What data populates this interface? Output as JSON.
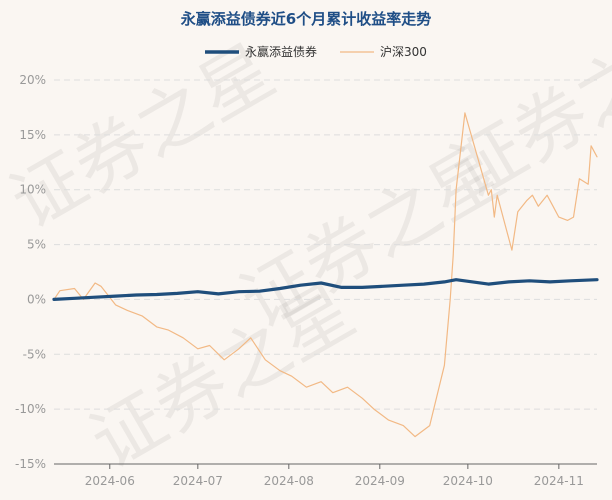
{
  "chart_data": {
    "type": "line",
    "title": "永赢添益债券近6个月累计收益率走势",
    "legend_position": "top-center",
    "grid": true,
    "ylim": [
      -15,
      20
    ],
    "yticks": [
      "20%",
      "15%",
      "10%",
      "5%",
      "0%",
      "-5%",
      "-10%",
      "-15%"
    ],
    "xticks": [
      "2024-06",
      "2024-07",
      "2024-08",
      "2024-09",
      "2024-10",
      "2024-11"
    ],
    "x_range": [
      "2024-05-13",
      "2024-11-14"
    ],
    "colors": {
      "title": "#1f4e86",
      "fund": "#1f4e7c",
      "index": "#f2b985",
      "grid": "#dddddd"
    },
    "watermark": "证券之星",
    "series": [
      {
        "name": "永赢添益债券",
        "x": [
          "2024-05-13",
          "2024-05-20",
          "2024-05-27",
          "2024-06-03",
          "2024-06-10",
          "2024-06-17",
          "2024-06-24",
          "2024-07-01",
          "2024-07-08",
          "2024-07-15",
          "2024-07-22",
          "2024-07-29",
          "2024-08-05",
          "2024-08-12",
          "2024-08-19",
          "2024-08-26",
          "2024-09-02",
          "2024-09-09",
          "2024-09-16",
          "2024-09-23",
          "2024-09-27",
          "2024-10-08",
          "2024-10-15",
          "2024-10-22",
          "2024-10-29",
          "2024-11-05",
          "2024-11-14"
        ],
        "values": [
          0.0,
          0.1,
          0.2,
          0.3,
          0.4,
          0.45,
          0.55,
          0.7,
          0.5,
          0.7,
          0.75,
          1.0,
          1.3,
          1.5,
          1.1,
          1.1,
          1.2,
          1.3,
          1.4,
          1.6,
          1.8,
          1.4,
          1.6,
          1.7,
          1.6,
          1.7,
          1.8
        ]
      },
      {
        "name": "沪深300",
        "x": [
          "2024-05-13",
          "2024-05-15",
          "2024-05-20",
          "2024-05-23",
          "2024-05-27",
          "2024-05-29",
          "2024-06-03",
          "2024-06-07",
          "2024-06-12",
          "2024-06-17",
          "2024-06-21",
          "2024-06-26",
          "2024-07-01",
          "2024-07-05",
          "2024-07-10",
          "2024-07-15",
          "2024-07-19",
          "2024-07-24",
          "2024-07-29",
          "2024-08-02",
          "2024-08-07",
          "2024-08-12",
          "2024-08-16",
          "2024-08-21",
          "2024-08-26",
          "2024-08-30",
          "2024-09-04",
          "2024-09-09",
          "2024-09-13",
          "2024-09-18",
          "2024-09-23",
          "2024-09-25",
          "2024-09-26",
          "2024-09-27",
          "2024-09-30",
          "2024-10-08",
          "2024-10-09",
          "2024-10-10",
          "2024-10-11",
          "2024-10-14",
          "2024-10-16",
          "2024-10-18",
          "2024-10-21",
          "2024-10-23",
          "2024-10-25",
          "2024-10-28",
          "2024-10-30",
          "2024-11-01",
          "2024-11-04",
          "2024-11-06",
          "2024-11-08",
          "2024-11-11",
          "2024-11-12",
          "2024-11-14"
        ],
        "values": [
          0.0,
          0.8,
          1.0,
          0.0,
          1.5,
          1.2,
          -0.5,
          -1.0,
          -1.5,
          -2.5,
          -2.8,
          -3.5,
          -4.5,
          -4.2,
          -5.5,
          -4.5,
          -3.5,
          -5.5,
          -6.5,
          -7.0,
          -8.0,
          -7.5,
          -8.5,
          -8.0,
          -9.0,
          -10.0,
          -11.0,
          -11.5,
          -12.5,
          -11.5,
          -6.0,
          0.0,
          4.0,
          10.0,
          17.0,
          9.5,
          10.0,
          7.5,
          9.5,
          6.5,
          4.5,
          8.0,
          9.0,
          9.5,
          8.5,
          9.5,
          8.5,
          7.5,
          7.2,
          7.5,
          11.0,
          10.5,
          14.0,
          13.0
        ]
      }
    ]
  }
}
